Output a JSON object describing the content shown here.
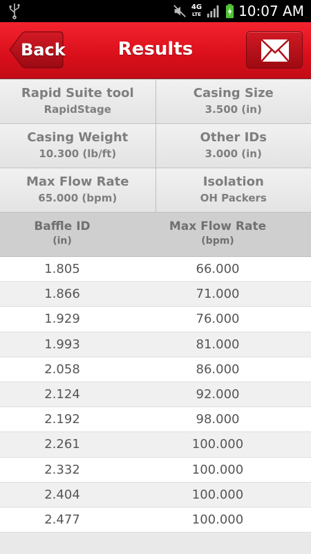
{
  "status_bar": {
    "time": "10:07 AM",
    "network": "4G",
    "network_sub": "LTE"
  },
  "header": {
    "back_label": "Back",
    "title": "Results",
    "mail_icon": "envelope-icon"
  },
  "info": [
    [
      {
        "label": "Rapid Suite tool",
        "value": "RapidStage"
      },
      {
        "label": "Casing Size",
        "value": "3.500 (in)"
      }
    ],
    [
      {
        "label": "Casing Weight",
        "value": "10.300 (lb/ft)"
      },
      {
        "label": "Other IDs",
        "value": "3.000 (in)"
      }
    ],
    [
      {
        "label": "Max Flow Rate",
        "value": "65.000 (bpm)"
      },
      {
        "label": "Isolation",
        "value": "OH Packers"
      }
    ]
  ],
  "table": {
    "headers": [
      {
        "label": "Baffle ID",
        "unit": "(in)"
      },
      {
        "label": "Max Flow Rate",
        "unit": "(bpm)"
      }
    ],
    "rows": [
      [
        "1.805",
        "66.000"
      ],
      [
        "1.866",
        "71.000"
      ],
      [
        "1.929",
        "76.000"
      ],
      [
        "1.993",
        "81.000"
      ],
      [
        "2.058",
        "86.000"
      ],
      [
        "2.124",
        "92.000"
      ],
      [
        "2.192",
        "98.000"
      ],
      [
        "2.261",
        "100.000"
      ],
      [
        "2.332",
        "100.000"
      ],
      [
        "2.404",
        "100.000"
      ],
      [
        "2.477",
        "100.000"
      ]
    ]
  },
  "colors": {
    "header_red": "#d90f1b",
    "text_gray": "#7e7e7e"
  }
}
